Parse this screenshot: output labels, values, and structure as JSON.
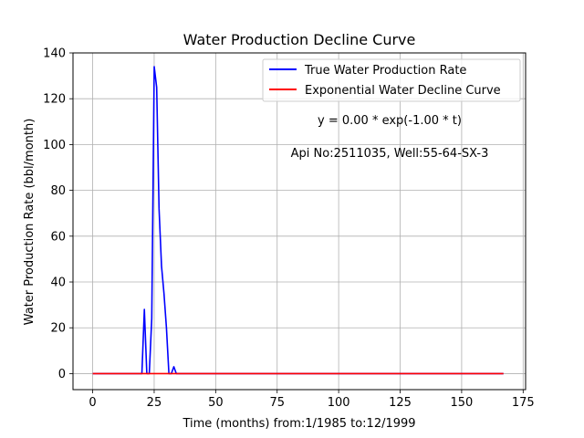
{
  "chart_data": {
    "type": "line",
    "title": "Water Production Decline Curve",
    "xlabel": "Time (months) from:1/1985 to:12/1999",
    "ylabel": "Water Production Rate (bbl/month)",
    "xlim": [
      -8,
      176
    ],
    "ylim": [
      -7,
      140
    ],
    "xticks": [
      0,
      25,
      50,
      75,
      100,
      125,
      150,
      175
    ],
    "yticks": [
      0,
      20,
      40,
      60,
      80,
      100,
      120,
      140
    ],
    "grid": true,
    "legend_position": "top-right",
    "annotations": [
      "y = 0.00 * exp(-1.00 * t)",
      "Api No:2511035, Well:55-64-SX-3"
    ],
    "series": [
      {
        "name": "True Water Production Rate",
        "color": "#0000ff",
        "x": [
          0,
          20,
          21,
          22,
          23,
          24,
          25,
          26,
          27,
          28,
          29,
          30,
          31,
          32,
          33,
          34,
          167
        ],
        "y": [
          0,
          0,
          28,
          0,
          0,
          24,
          134,
          125,
          72,
          47,
          35,
          20,
          0,
          0,
          3,
          0,
          0
        ]
      },
      {
        "name": "Exponential Water Decline Curve",
        "color": "#ff0000",
        "x": [
          0,
          167
        ],
        "y": [
          0,
          0
        ]
      }
    ]
  }
}
